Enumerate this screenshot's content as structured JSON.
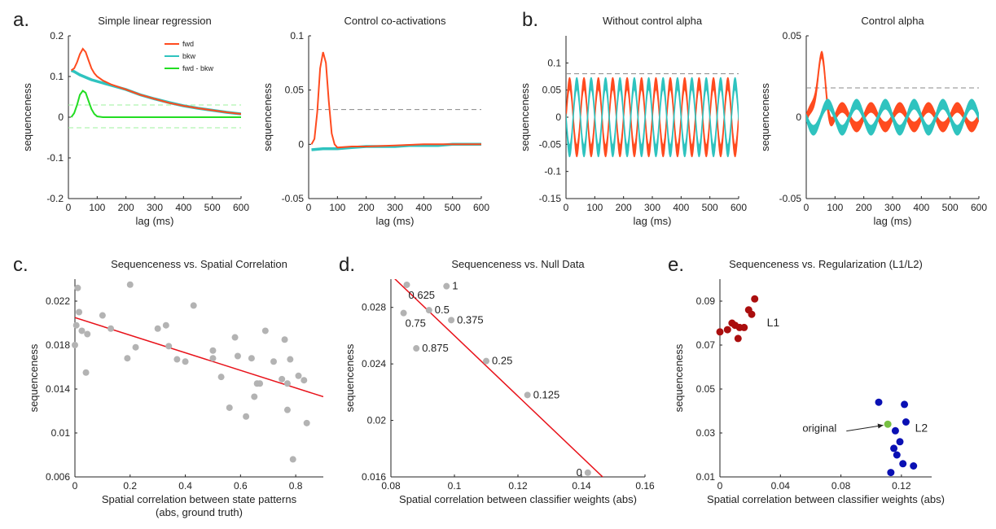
{
  "panel_letters": [
    "a.",
    "b.",
    "c.",
    "d.",
    "e."
  ],
  "colors": {
    "fwd": "#ff4b1f",
    "bkw": "#2fc3bf",
    "diff": "#22dd22",
    "diff_threshold": "#9ef29e",
    "threshold": "#888888",
    "scatter_point": "#b3b3b3",
    "fit_line": "#e8121a",
    "l1": "#aa0e0e",
    "l2": "#0a10b4",
    "original": "#77c043"
  },
  "chart_data": [
    {
      "id": "a1",
      "type": "line",
      "title": "Simple linear regression",
      "xlabel": "lag (ms)",
      "ylabel": "sequenceness",
      "xlim": [
        0,
        600
      ],
      "ylim": [
        -0.2,
        0.2
      ],
      "xticks": [
        0,
        100,
        200,
        300,
        400,
        500,
        600
      ],
      "yticks": [
        -0.2,
        -0.1,
        0,
        0.1,
        0.2
      ],
      "ytick_labels": [
        "-0.2",
        "-0.1",
        "0",
        "0.1",
        "0.2"
      ],
      "legend": {
        "position": "top-right",
        "entries": [
          "fwd",
          "bkw",
          "fwd - bkw"
        ]
      },
      "thresholds": [
        0.03,
        -0.026
      ],
      "series": [
        {
          "name": "fwd",
          "x": [
            10,
            20,
            30,
            40,
            50,
            60,
            70,
            80,
            90,
            100,
            120,
            150,
            200,
            250,
            300,
            350,
            400,
            450,
            500,
            550,
            600
          ],
          "y": [
            0.115,
            0.12,
            0.135,
            0.155,
            0.168,
            0.16,
            0.14,
            0.12,
            0.108,
            0.1,
            0.09,
            0.08,
            0.068,
            0.055,
            0.045,
            0.035,
            0.028,
            0.022,
            0.017,
            0.012,
            0.008
          ]
        },
        {
          "name": "bkw",
          "x": [
            10,
            20,
            30,
            40,
            50,
            60,
            70,
            80,
            90,
            100,
            120,
            150,
            200,
            250,
            300,
            350,
            400,
            450,
            500,
            550,
            600
          ],
          "y": [
            0.115,
            0.112,
            0.108,
            0.104,
            0.101,
            0.098,
            0.095,
            0.092,
            0.09,
            0.088,
            0.084,
            0.078,
            0.068,
            0.055,
            0.045,
            0.036,
            0.028,
            0.022,
            0.017,
            0.012,
            0.008
          ]
        },
        {
          "name": "fwd - bkw",
          "x": [
            10,
            20,
            30,
            40,
            50,
            60,
            70,
            80,
            90,
            100,
            120,
            150,
            200,
            300,
            400,
            500,
            600
          ],
          "y": [
            0.0,
            0.01,
            0.03,
            0.055,
            0.065,
            0.06,
            0.04,
            0.02,
            0.008,
            0.002,
            0.0,
            0.0,
            0.0,
            0.0,
            0.0,
            0.0,
            0.0
          ]
        }
      ]
    },
    {
      "id": "a2",
      "type": "line",
      "title": "Control co-activations",
      "xlabel": "lag (ms)",
      "ylabel": "sequenceness",
      "xlim": [
        0,
        600
      ],
      "ylim": [
        -0.05,
        0.1
      ],
      "xticks": [
        0,
        100,
        200,
        300,
        400,
        500,
        600
      ],
      "yticks": [
        -0.05,
        0,
        0.05,
        0.1
      ],
      "ytick_labels": [
        "-0.05",
        "0",
        "0.05",
        "0.1"
      ],
      "thresholds": [
        0.032
      ],
      "series": [
        {
          "name": "fwd",
          "x": [
            10,
            20,
            30,
            40,
            50,
            60,
            70,
            80,
            90,
            100,
            150,
            200,
            300,
            400,
            500,
            600
          ],
          "y": [
            0.0,
            0.005,
            0.03,
            0.07,
            0.085,
            0.075,
            0.04,
            0.01,
            0.0,
            -0.003,
            -0.002,
            -0.002,
            -0.001,
            0.0,
            0.0,
            0.0
          ]
        },
        {
          "name": "bkw",
          "x": [
            10,
            50,
            100,
            150,
            200,
            250,
            300,
            350,
            400,
            450,
            500,
            550,
            600
          ],
          "y": [
            -0.005,
            -0.004,
            -0.004,
            -0.003,
            -0.002,
            -0.002,
            -0.002,
            -0.001,
            -0.001,
            -0.001,
            0.0,
            0.0,
            0.0
          ]
        }
      ]
    },
    {
      "id": "b1",
      "type": "area",
      "title": "Without control alpha",
      "xlabel": "lag (ms)",
      "ylabel": "sequenceness",
      "xlim": [
        0,
        600
      ],
      "ylim": [
        -0.15,
        0.15
      ],
      "xticks": [
        0,
        100,
        200,
        300,
        400,
        500,
        600
      ],
      "yticks": [
        -0.15,
        -0.1,
        -0.05,
        0,
        0.05,
        0.1
      ],
      "ytick_labels": [
        "-0.15",
        "-0.1",
        "-0.05",
        "0",
        "0.05",
        "0.1"
      ],
      "thresholds": [
        0.08
      ],
      "series": [
        {
          "name": "fwd",
          "amplitude": 0.062,
          "period_ms": 50,
          "phase_deg": 0,
          "band_width": 0.022
        },
        {
          "name": "bkw",
          "amplitude": 0.062,
          "period_ms": 50,
          "phase_deg": 180,
          "band_width": 0.022
        }
      ]
    },
    {
      "id": "b2",
      "type": "area",
      "title": "Control alpha",
      "xlabel": "lag (ms)",
      "ylabel": "sequenceness",
      "xlim": [
        0,
        600
      ],
      "ylim": [
        -0.05,
        0.05
      ],
      "xticks": [
        0,
        100,
        200,
        300,
        400,
        500,
        600
      ],
      "yticks": [
        -0.05,
        0,
        0.05
      ],
      "ytick_labels": [
        "-0.05",
        "0",
        "0.05"
      ],
      "thresholds": [
        0.018
      ],
      "series": [
        {
          "name": "fwd",
          "amplitude": 0.006,
          "period_ms": 100,
          "phase_deg": 0,
          "band_width": 0.006,
          "peak": {
            "x": 55,
            "y": 0.04
          }
        },
        {
          "name": "bkw",
          "amplitude": 0.008,
          "period_ms": 100,
          "phase_deg": 180,
          "band_width": 0.006
        }
      ]
    },
    {
      "id": "c",
      "type": "scatter",
      "title": "Sequenceness vs. Spatial Correlation",
      "xlabel": "Spatial correlation between state patterns",
      "xlabel2": "(abs, ground truth)",
      "ylabel": "sequenceness",
      "xlim": [
        0,
        0.9
      ],
      "ylim": [
        0.006,
        0.024
      ],
      "xticks": [
        0,
        0.2,
        0.4,
        0.6,
        0.8
      ],
      "xtick_labels": [
        "0",
        "0.2",
        "0.4",
        "0.6",
        "0.8"
      ],
      "yticks": [
        0.006,
        0.01,
        0.014,
        0.018,
        0.022
      ],
      "ytick_labels": [
        "0.006",
        "0.01",
        "0.014",
        "0.018",
        "0.022"
      ],
      "fit_line": {
        "x": [
          0,
          0.9
        ],
        "y": [
          0.0205,
          0.0133
        ]
      },
      "points": [
        [
          0.0,
          0.018
        ],
        [
          0.005,
          0.0198
        ],
        [
          0.01,
          0.0232
        ],
        [
          0.015,
          0.021
        ],
        [
          0.025,
          0.0193
        ],
        [
          0.04,
          0.0155
        ],
        [
          0.045,
          0.019
        ],
        [
          0.1,
          0.0207
        ],
        [
          0.13,
          0.0195
        ],
        [
          0.19,
          0.0168
        ],
        [
          0.2,
          0.0235
        ],
        [
          0.22,
          0.0178
        ],
        [
          0.3,
          0.0195
        ],
        [
          0.33,
          0.0198
        ],
        [
          0.34,
          0.0179
        ],
        [
          0.37,
          0.0167
        ],
        [
          0.4,
          0.0165
        ],
        [
          0.43,
          0.0216
        ],
        [
          0.5,
          0.0175
        ],
        [
          0.5,
          0.0168
        ],
        [
          0.53,
          0.0151
        ],
        [
          0.56,
          0.0123
        ],
        [
          0.58,
          0.0187
        ],
        [
          0.59,
          0.017
        ],
        [
          0.62,
          0.0115
        ],
        [
          0.64,
          0.0168
        ],
        [
          0.65,
          0.0133
        ],
        [
          0.66,
          0.0145
        ],
        [
          0.67,
          0.0145
        ],
        [
          0.69,
          0.0193
        ],
        [
          0.72,
          0.0165
        ],
        [
          0.75,
          0.0149
        ],
        [
          0.76,
          0.0185
        ],
        [
          0.77,
          0.0121
        ],
        [
          0.77,
          0.0145
        ],
        [
          0.78,
          0.0167
        ],
        [
          0.79,
          0.0076
        ],
        [
          0.81,
          0.0152
        ],
        [
          0.83,
          0.0148
        ],
        [
          0.84,
          0.0109
        ]
      ]
    },
    {
      "id": "d",
      "type": "scatter",
      "title": "Sequenceness vs. Null Data",
      "xlabel": "Spatial correlation between classifier weights (abs)",
      "ylabel": "sequenceness",
      "xlim": [
        0.08,
        0.16
      ],
      "ylim": [
        0.016,
        0.03
      ],
      "xticks": [
        0.08,
        0.1,
        0.12,
        0.14,
        0.16
      ],
      "xtick_labels": [
        "0.08",
        "0.1",
        "0.12",
        "0.14",
        "0.16"
      ],
      "yticks": [
        0.016,
        0.02,
        0.024,
        0.028
      ],
      "ytick_labels": [
        "0.016",
        "0.02",
        "0.024",
        "0.028"
      ],
      "fit_line": {
        "x": [
          0.079,
          0.149
        ],
        "y": [
          0.0305,
          0.0155
        ]
      },
      "points": [
        {
          "x": 0.0975,
          "y": 0.0295,
          "label": "1",
          "pos": "right"
        },
        {
          "x": 0.085,
          "y": 0.0296,
          "label": "0.625",
          "pos": "below"
        },
        {
          "x": 0.092,
          "y": 0.0278,
          "label": "0.5",
          "pos": "right"
        },
        {
          "x": 0.099,
          "y": 0.0271,
          "label": "0.375",
          "pos": "right"
        },
        {
          "x": 0.084,
          "y": 0.0276,
          "label": "0.75",
          "pos": "below"
        },
        {
          "x": 0.088,
          "y": 0.0251,
          "label": "0.875",
          "pos": "right"
        },
        {
          "x": 0.11,
          "y": 0.0242,
          "label": "0.25",
          "pos": "right"
        },
        {
          "x": 0.123,
          "y": 0.0218,
          "label": "0.125",
          "pos": "right"
        },
        {
          "x": 0.142,
          "y": 0.0163,
          "label": "0",
          "pos": "left"
        }
      ]
    },
    {
      "id": "e",
      "type": "scatter",
      "title": "Sequenceness vs. Regularization (L1/L2)",
      "xlabel": "Spatial correlation between classifier weights (abs)",
      "ylabel": "sequenceness",
      "xlim": [
        0,
        0.14
      ],
      "ylim": [
        0.01,
        0.1
      ],
      "xticks": [
        0,
        0.04,
        0.08,
        0.12
      ],
      "xtick_labels": [
        "0",
        "0.04",
        "0.08",
        "0.12"
      ],
      "yticks": [
        0.01,
        0.03,
        0.05,
        0.07,
        0.09
      ],
      "ytick_labels": [
        "0.01",
        "0.03",
        "0.05",
        "0.07",
        "0.09"
      ],
      "groups": [
        {
          "name": "L1",
          "label_at": {
            "x": 0.031,
            "y": 0.08
          },
          "points": [
            [
              0.0,
              0.076
            ],
            [
              0.005,
              0.077
            ],
            [
              0.008,
              0.08
            ],
            [
              0.012,
              0.073
            ],
            [
              0.013,
              0.078
            ],
            [
              0.016,
              0.078
            ],
            [
              0.019,
              0.086
            ],
            [
              0.021,
              0.084
            ],
            [
              0.023,
              0.091
            ],
            [
              0.01,
              0.079
            ]
          ]
        },
        {
          "name": "L2",
          "label_at": {
            "x": 0.129,
            "y": 0.032
          },
          "points": [
            [
              0.105,
              0.044
            ],
            [
              0.113,
              0.012
            ],
            [
              0.115,
              0.023
            ],
            [
              0.116,
              0.031
            ],
            [
              0.117,
              0.02
            ],
            [
              0.119,
              0.026
            ],
            [
              0.121,
              0.016
            ],
            [
              0.122,
              0.043
            ],
            [
              0.123,
              0.035
            ],
            [
              0.128,
              0.015
            ]
          ]
        },
        {
          "name": "original",
          "points": [
            [
              0.111,
              0.034
            ]
          ]
        }
      ],
      "annotation": {
        "text": "original",
        "text_at": {
          "x": 0.082,
          "y": 0.032
        },
        "arrow_to": {
          "x": 0.108,
          "y": 0.0335
        }
      }
    }
  ]
}
